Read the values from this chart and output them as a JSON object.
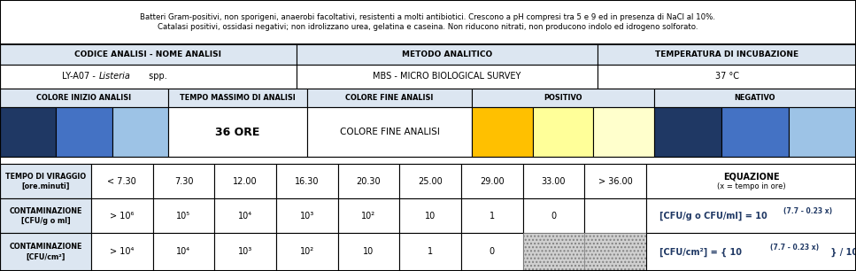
{
  "title_line1": "Batteri Gram-positivi, non sporigeni, anaerobi facoltativi, resistenti a molti antibiotici. Crescono a pH compresi tra 5 e 9 ed in presenza di NaCl al 10%.",
  "title_line2": "Catalasi positivi, ossidasi negativi; non idrolizzano urea, gelatina e caseina. Non riducono nitrati, non producono indolo ed idrogeno solforato.",
  "h1_label": "CODICE ANALISI - NOME ANALISI",
  "h2_label": "METODO ANALITICO",
  "h3_label": "TEMPERATURA DI INCUBAZIONE",
  "a1_normal": "LY-A07 - ",
  "a1_italic": "Listeria",
  "a1_end": " spp.",
  "a2_label": "MBS - MICRO BIOLOGICAL SURVEY",
  "a3_label": "37 °C",
  "ci_label": "COLORE INIZIO ANALISI",
  "tm_label": "TEMPO MASSIMO DI ANALISI",
  "cf_label": "COLORE FINE ANALISI",
  "pos_label": "POSITIVO",
  "neg_label": "NEGATIVO",
  "ore_label": "36 ORE",
  "start_colors": [
    "#1f3864",
    "#4472c4",
    "#9dc3e6"
  ],
  "positive_colors": [
    "#ffc000",
    "#ffff99",
    "#ffffcc"
  ],
  "negative_colors": [
    "#1f3864",
    "#4472c4",
    "#9dc3e6"
  ],
  "tempo_label": "TEMPO DI VIRAGGIO\n[ore.minuti]",
  "cont1_label": "CONTAMINAZIONE\n[CFU/g o ml]",
  "cont2_label": "CONTAMINAZIONE\n[CFU/cm²]",
  "time_values": [
    "< 7.30",
    "7.30",
    "12.00",
    "16.30",
    "20.30",
    "25.00",
    "29.00",
    "33.00",
    "> 36.00"
  ],
  "cont1_values": [
    "> 10⁶",
    "10⁵",
    "10⁴",
    "10³",
    "10²",
    "10",
    "1",
    "0"
  ],
  "cont2_values": [
    "> 10⁴",
    "10⁴",
    "10³",
    "10²",
    "10",
    "1",
    "0"
  ],
  "eq_header": "EQUAZIONE",
  "eq_sub": "(x = tempo in ore)",
  "light_blue": "#dce6f1",
  "white": "#ffffff",
  "dark_blue_text": "#1f3864",
  "black": "#000000"
}
